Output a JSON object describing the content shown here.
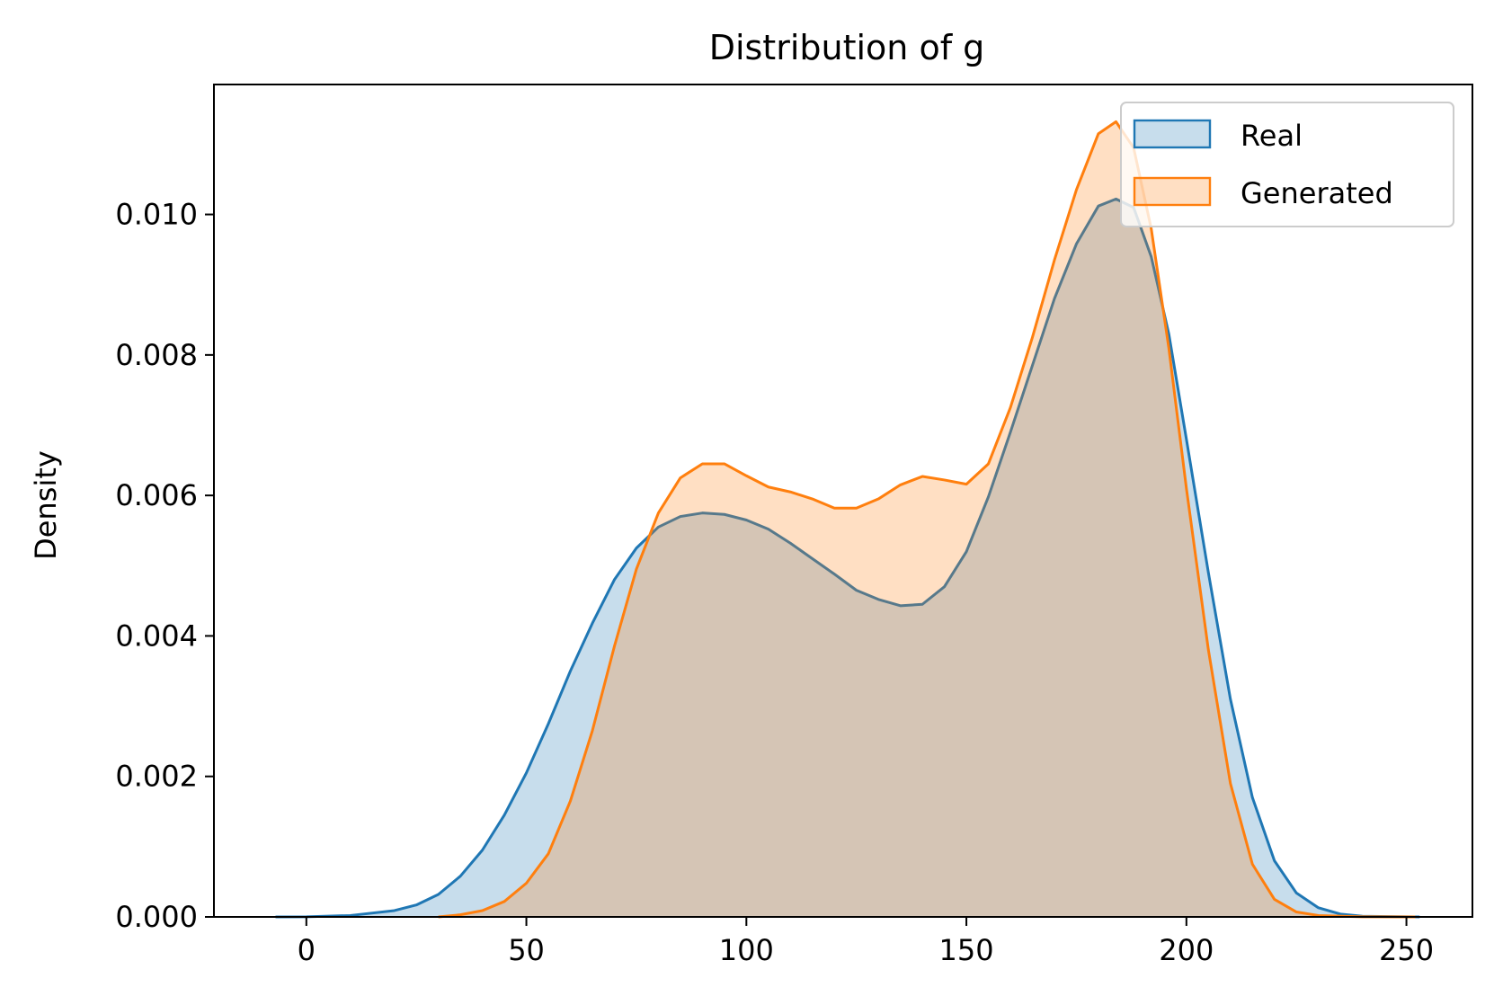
{
  "chart_data": {
    "type": "area",
    "title": "Distribution of g",
    "xlabel": "",
    "ylabel": "Density",
    "xlim": [
      -21,
      265
    ],
    "ylim": [
      0,
      0.01185
    ],
    "xticks": [
      0,
      50,
      100,
      150,
      200,
      250
    ],
    "yticks": [
      0.0,
      0.002,
      0.004,
      0.006,
      0.008,
      0.01
    ],
    "ytick_labels": [
      "0.000",
      "0.002",
      "0.004",
      "0.006",
      "0.008",
      "0.010"
    ],
    "grid": false,
    "legend_position": "top-right",
    "series": [
      {
        "name": "Real",
        "color": "#1f77b4",
        "points": [
          [
            -7,
            0.0
          ],
          [
            0,
            2e-06
          ],
          [
            10,
            2e-05
          ],
          [
            20,
            9e-05
          ],
          [
            25,
            0.00017
          ],
          [
            30,
            0.00032
          ],
          [
            35,
            0.00058
          ],
          [
            40,
            0.00095
          ],
          [
            45,
            0.00145
          ],
          [
            50,
            0.00205
          ],
          [
            55,
            0.00275
          ],
          [
            60,
            0.0035
          ],
          [
            65,
            0.00418
          ],
          [
            70,
            0.0048
          ],
          [
            75,
            0.00525
          ],
          [
            80,
            0.00555
          ],
          [
            85,
            0.0057
          ],
          [
            90,
            0.00575
          ],
          [
            95,
            0.00573
          ],
          [
            100,
            0.00565
          ],
          [
            105,
            0.00552
          ],
          [
            110,
            0.00532
          ],
          [
            115,
            0.0051
          ],
          [
            120,
            0.00488
          ],
          [
            125,
            0.00465
          ],
          [
            130,
            0.00452
          ],
          [
            135,
            0.00443
          ],
          [
            140,
            0.00445
          ],
          [
            145,
            0.0047
          ],
          [
            150,
            0.0052
          ],
          [
            155,
            0.00598
          ],
          [
            160,
            0.0069
          ],
          [
            165,
            0.00785
          ],
          [
            170,
            0.0088
          ],
          [
            175,
            0.00958
          ],
          [
            180,
            0.01012
          ],
          [
            184,
            0.01022
          ],
          [
            188,
            0.0101
          ],
          [
            192,
            0.0094
          ],
          [
            196,
            0.0083
          ],
          [
            200,
            0.0068
          ],
          [
            205,
            0.0049
          ],
          [
            210,
            0.0031
          ],
          [
            215,
            0.0017
          ],
          [
            220,
            0.0008
          ],
          [
            225,
            0.00034
          ],
          [
            230,
            0.00013
          ],
          [
            235,
            4e-05
          ],
          [
            240,
            1e-05
          ],
          [
            253,
            0.0
          ]
        ]
      },
      {
        "name": "Generated",
        "color": "#ff7f0e",
        "points": [
          [
            30,
            0.0
          ],
          [
            35,
            3e-05
          ],
          [
            40,
            9e-05
          ],
          [
            45,
            0.00022
          ],
          [
            50,
            0.00048
          ],
          [
            55,
            0.0009
          ],
          [
            60,
            0.00165
          ],
          [
            65,
            0.00265
          ],
          [
            70,
            0.00385
          ],
          [
            75,
            0.00495
          ],
          [
            80,
            0.00575
          ],
          [
            85,
            0.00625
          ],
          [
            90,
            0.00645
          ],
          [
            95,
            0.00645
          ],
          [
            100,
            0.00628
          ],
          [
            105,
            0.00612
          ],
          [
            110,
            0.00605
          ],
          [
            115,
            0.00595
          ],
          [
            120,
            0.00582
          ],
          [
            125,
            0.00582
          ],
          [
            130,
            0.00595
          ],
          [
            135,
            0.00615
          ],
          [
            140,
            0.00627
          ],
          [
            145,
            0.00622
          ],
          [
            150,
            0.00616
          ],
          [
            155,
            0.00645
          ],
          [
            160,
            0.00725
          ],
          [
            165,
            0.00825
          ],
          [
            170,
            0.00935
          ],
          [
            175,
            0.01035
          ],
          [
            180,
            0.01115
          ],
          [
            184,
            0.01132
          ],
          [
            188,
            0.01095
          ],
          [
            192,
            0.0098
          ],
          [
            196,
            0.0081
          ],
          [
            200,
            0.0061
          ],
          [
            205,
            0.0038
          ],
          [
            210,
            0.0019
          ],
          [
            215,
            0.00075
          ],
          [
            220,
            0.00025
          ],
          [
            225,
            7e-05
          ],
          [
            230,
            2e-05
          ],
          [
            240,
            2e-06
          ],
          [
            252,
            0.0
          ]
        ]
      }
    ]
  }
}
